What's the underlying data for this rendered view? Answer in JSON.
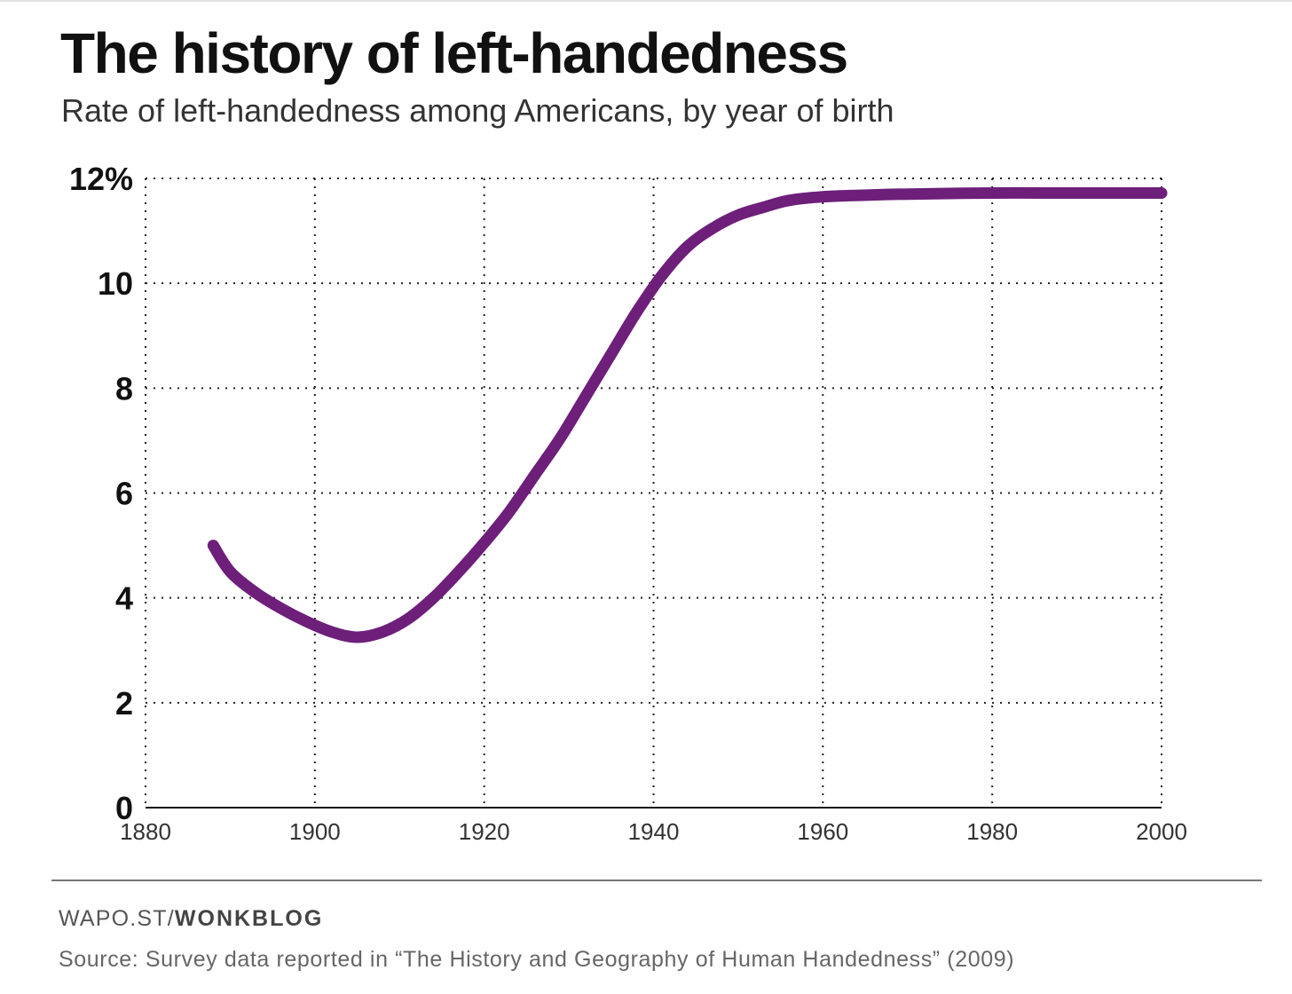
{
  "header": {
    "title": "The history of left-handedness",
    "subtitle": "Rate of left-handedness among Americans, by year of birth"
  },
  "footer": {
    "credit_prefix": "WAPO.ST/",
    "credit_brand": "WONKBLOG",
    "source": "Source: Survey data reported in “The History and Geography of Human Handedness” (2009)"
  },
  "colors": {
    "line": "#6d1f7a",
    "grid": "#222222",
    "axis": "#111111"
  },
  "chart_data": {
    "type": "line",
    "title": "The history of left-handedness",
    "subtitle": "Rate of left-handedness among Americans, by year of birth",
    "xlabel": "",
    "ylabel": "",
    "xlim": [
      1880,
      2000
    ],
    "ylim": [
      0,
      12
    ],
    "x_ticks": [
      1880,
      1900,
      1920,
      1940,
      1960,
      1980,
      2000
    ],
    "x_tick_labels": [
      "1880",
      "1900",
      "1920",
      "1940",
      "1960",
      "1980",
      "2000"
    ],
    "y_ticks": [
      0,
      2,
      4,
      6,
      8,
      10,
      12
    ],
    "y_tick_labels": [
      "0",
      "2",
      "4",
      "6",
      "8",
      "10",
      "12%"
    ],
    "grid": true,
    "legend": "none",
    "series": [
      {
        "x": [
          1888,
          1890,
          1893,
          1896,
          1899,
          1902,
          1905,
          1908,
          1911,
          1914,
          1917,
          1920,
          1923,
          1926,
          1929,
          1932,
          1935,
          1938,
          1941,
          1944,
          1947,
          1950,
          1953,
          1956,
          1960,
          1965,
          1970,
          1980,
          1990,
          2000
        ],
        "values": [
          5.0,
          4.5,
          4.1,
          3.8,
          3.55,
          3.35,
          3.25,
          3.35,
          3.6,
          4.0,
          4.5,
          5.05,
          5.65,
          6.35,
          7.05,
          7.85,
          8.65,
          9.45,
          10.15,
          10.7,
          11.05,
          11.3,
          11.45,
          11.58,
          11.65,
          11.68,
          11.7,
          11.72,
          11.72,
          11.72
        ]
      }
    ]
  }
}
